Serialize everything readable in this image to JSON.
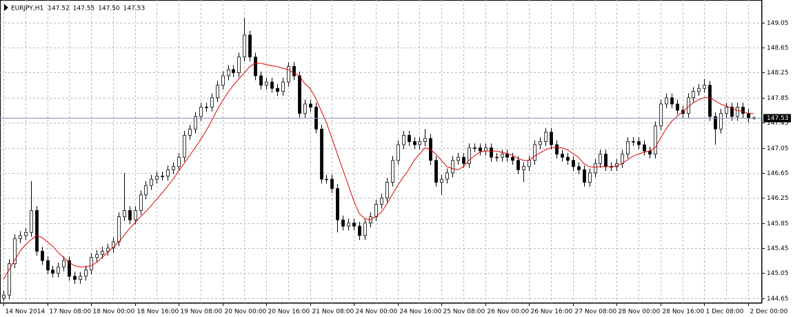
{
  "chart_data": {
    "type": "candlestick",
    "title": "EURJPY,H1",
    "quote_labels": [
      "147.52",
      "147.55",
      "147.50",
      "147.53"
    ],
    "categories": [
      "14 Nov 2014",
      null,
      null,
      null,
      null,
      null,
      null,
      null,
      "17 Nov 08:00",
      null,
      null,
      null,
      null,
      null,
      null,
      null,
      "18 Nov 00:00",
      null,
      null,
      null,
      null,
      null,
      null,
      null,
      "18 Nov 16:00",
      null,
      null,
      null,
      null,
      null,
      null,
      null,
      "19 Nov 08:00",
      null,
      null,
      null,
      null,
      null,
      null,
      null,
      "20 Nov 00:00",
      null,
      null,
      null,
      null,
      null,
      null,
      null,
      "20 Nov 16:00",
      null,
      null,
      null,
      null,
      null,
      null,
      null,
      "21 Nov 08:00",
      null,
      null,
      null,
      null,
      null,
      null,
      null,
      "24 Nov 00:00",
      null,
      null,
      null,
      null,
      null,
      null,
      null,
      "24 Nov 16:00",
      null,
      null,
      null,
      null,
      null,
      null,
      null,
      "25 Nov 08:00",
      null,
      null,
      null,
      null,
      null,
      null,
      null,
      "26 Nov 00:00",
      null,
      null,
      null,
      null,
      null,
      null,
      null,
      "26 Nov 16:00",
      null,
      null,
      null,
      null,
      null,
      null,
      null,
      "27 Nov 08:00",
      null,
      null,
      null,
      null,
      null,
      null,
      null,
      "28 Nov 00:00",
      null,
      null,
      null,
      null,
      null,
      null,
      null,
      "28 Nov 16:00",
      null,
      null,
      null,
      null,
      null,
      null,
      null,
      "1 Dec 08:00",
      null,
      null,
      null,
      null,
      null,
      null,
      null,
      "2 Dec 00:00",
      null
    ],
    "open": [
      144.65,
      144.7,
      145.2,
      145.6,
      145.65,
      145.7,
      146.05,
      145.4,
      145.25,
      145.1,
      145.05,
      145.15,
      145.25,
      145.0,
      144.95,
      145.0,
      145.1,
      145.3,
      145.35,
      145.4,
      145.45,
      145.55,
      145.95,
      146.05,
      145.9,
      146.05,
      146.3,
      146.45,
      146.55,
      146.6,
      146.6,
      146.7,
      146.75,
      146.9,
      147.25,
      147.35,
      147.55,
      147.7,
      147.7,
      147.85,
      148.05,
      148.2,
      148.3,
      148.25,
      148.5,
      148.85,
      148.5,
      148.2,
      148.05,
      148.1,
      148.0,
      147.95,
      148.1,
      148.35,
      148.2,
      147.6,
      147.75,
      147.7,
      147.35,
      146.55,
      146.55,
      146.4,
      145.9,
      145.8,
      145.85,
      145.8,
      145.65,
      145.85,
      145.95,
      146.15,
      146.25,
      146.5,
      146.85,
      147.1,
      147.25,
      147.15,
      147.1,
      147.15,
      147.2,
      146.85,
      146.5,
      146.55,
      146.65,
      146.85,
      146.9,
      146.8,
      147.05,
      147.05,
      147.0,
      147.05,
      146.9,
      146.9,
      146.95,
      146.9,
      146.85,
      146.7,
      146.75,
      146.85,
      147.1,
      147.15,
      147.3,
      147.1,
      146.95,
      146.9,
      146.85,
      146.75,
      146.7,
      146.5,
      146.65,
      146.8,
      146.95,
      146.75,
      146.75,
      146.8,
      146.95,
      147.15,
      147.15,
      147.1,
      147.0,
      146.95,
      147.4,
      147.75,
      147.85,
      147.75,
      147.65,
      147.6,
      147.85,
      147.95,
      148.0,
      148.05,
      147.55,
      147.35,
      147.6,
      147.7,
      147.55,
      147.7,
      147.6,
      147.52
    ],
    "high": [
      144.77,
      145.27,
      145.67,
      145.72,
      145.77,
      146.52,
      146.12,
      145.47,
      145.32,
      145.17,
      145.22,
      145.32,
      145.32,
      145.07,
      145.07,
      145.17,
      145.37,
      145.42,
      145.47,
      145.52,
      145.62,
      146.02,
      146.65,
      146.12,
      146.12,
      146.37,
      146.52,
      146.62,
      146.67,
      146.67,
      146.77,
      146.82,
      146.97,
      147.32,
      147.42,
      147.62,
      147.77,
      147.77,
      147.92,
      148.12,
      148.27,
      148.37,
      148.37,
      148.57,
      149.12,
      148.92,
      148.57,
      148.27,
      148.17,
      148.17,
      148.07,
      148.17,
      148.42,
      148.42,
      148.27,
      147.82,
      147.82,
      147.77,
      147.42,
      146.62,
      146.62,
      146.47,
      145.97,
      145.92,
      145.92,
      145.87,
      145.92,
      146.02,
      146.22,
      146.32,
      146.57,
      146.92,
      147.17,
      147.32,
      147.32,
      147.22,
      147.22,
      147.35,
      147.27,
      146.92,
      146.62,
      146.72,
      146.92,
      146.97,
      146.97,
      147.12,
      147.12,
      147.12,
      147.12,
      147.12,
      146.97,
      147.02,
      147.02,
      146.97,
      146.92,
      146.82,
      146.92,
      147.17,
      147.22,
      147.37,
      147.37,
      147.17,
      147.02,
      146.97,
      146.92,
      146.82,
      146.77,
      146.72,
      146.87,
      147.02,
      147.02,
      146.82,
      146.87,
      147.02,
      147.22,
      147.22,
      147.22,
      147.17,
      147.07,
      147.47,
      147.82,
      147.92,
      147.92,
      147.82,
      147.72,
      147.92,
      148.02,
      148.07,
      148.15,
      148.12,
      147.62,
      147.67,
      147.77,
      147.77,
      147.77,
      147.77,
      147.67,
      147.55
    ],
    "low": [
      144.6,
      144.63,
      145.13,
      145.53,
      145.58,
      145.63,
      145.33,
      145.18,
      145.03,
      144.98,
      144.98,
      145.08,
      144.93,
      144.88,
      144.88,
      144.93,
      145.03,
      145.23,
      145.28,
      145.33,
      145.38,
      145.48,
      145.88,
      145.83,
      145.83,
      145.98,
      146.23,
      146.38,
      146.48,
      146.53,
      146.53,
      146.63,
      146.68,
      146.83,
      147.18,
      147.28,
      147.48,
      147.63,
      147.63,
      147.78,
      147.98,
      148.13,
      148.18,
      148.18,
      148.43,
      148.43,
      148.13,
      147.98,
      147.98,
      147.93,
      147.88,
      147.88,
      148.03,
      148.13,
      147.53,
      147.53,
      147.63,
      147.28,
      146.48,
      146.48,
      146.33,
      145.7,
      145.73,
      145.73,
      145.73,
      145.58,
      145.58,
      145.78,
      145.88,
      146.08,
      146.18,
      146.43,
      146.78,
      147.03,
      147.08,
      147.03,
      147.03,
      147.08,
      146.78,
      146.43,
      146.3,
      146.48,
      146.58,
      146.78,
      146.73,
      146.73,
      146.98,
      146.93,
      146.93,
      146.83,
      146.83,
      146.83,
      146.83,
      146.78,
      146.63,
      146.5,
      146.68,
      146.78,
      147.03,
      147.08,
      147.03,
      146.88,
      146.83,
      146.78,
      146.68,
      146.63,
      146.43,
      146.43,
      146.58,
      146.73,
      146.68,
      146.68,
      146.68,
      146.73,
      146.88,
      147.08,
      147.03,
      146.93,
      146.88,
      146.88,
      147.33,
      147.68,
      147.68,
      147.58,
      147.53,
      147.53,
      147.78,
      147.88,
      147.93,
      147.48,
      147.1,
      147.28,
      147.53,
      147.48,
      147.48,
      147.53,
      147.45,
      147.5
    ],
    "close": [
      144.7,
      145.2,
      145.6,
      145.65,
      145.7,
      146.05,
      145.4,
      145.25,
      145.1,
      145.05,
      145.15,
      145.25,
      145.0,
      144.95,
      145.0,
      145.1,
      145.3,
      145.35,
      145.4,
      145.45,
      145.55,
      145.95,
      146.05,
      145.9,
      146.05,
      146.3,
      146.45,
      146.55,
      146.6,
      146.6,
      146.7,
      146.75,
      146.9,
      147.25,
      147.35,
      147.55,
      147.7,
      147.7,
      147.85,
      148.05,
      148.2,
      148.3,
      148.25,
      148.5,
      148.85,
      148.5,
      148.2,
      148.05,
      148.1,
      148.0,
      147.95,
      148.1,
      148.35,
      148.2,
      147.6,
      147.75,
      147.7,
      147.35,
      146.55,
      146.55,
      146.4,
      145.9,
      145.8,
      145.85,
      145.8,
      145.65,
      145.85,
      145.95,
      146.15,
      146.25,
      146.5,
      146.85,
      147.1,
      147.25,
      147.15,
      147.1,
      147.15,
      147.2,
      146.85,
      146.5,
      146.55,
      146.65,
      146.85,
      146.9,
      146.8,
      147.05,
      147.05,
      147.0,
      147.05,
      146.9,
      146.9,
      146.95,
      146.9,
      146.85,
      146.7,
      146.75,
      146.85,
      147.1,
      147.15,
      147.3,
      147.1,
      146.95,
      146.9,
      146.85,
      146.75,
      146.7,
      146.5,
      146.65,
      146.8,
      146.95,
      146.75,
      146.75,
      146.8,
      146.95,
      147.15,
      147.15,
      147.1,
      147.0,
      146.95,
      147.4,
      147.75,
      147.85,
      147.75,
      147.65,
      147.6,
      147.85,
      147.95,
      148.0,
      148.05,
      147.55,
      147.35,
      147.6,
      147.7,
      147.55,
      147.7,
      147.6,
      147.52,
      147.53
    ],
    "ma": {
      "color": "#e00000",
      "values": [
        144.95,
        145.1,
        145.25,
        145.4,
        145.5,
        145.58,
        145.65,
        145.62,
        145.55,
        145.48,
        145.38,
        145.3,
        145.22,
        145.17,
        145.15,
        145.15,
        145.17,
        145.22,
        145.3,
        145.38,
        145.46,
        145.54,
        145.65,
        145.76,
        145.85,
        145.95,
        146.03,
        146.13,
        146.23,
        146.33,
        146.44,
        146.55,
        146.68,
        146.8,
        146.93,
        147.05,
        147.18,
        147.32,
        147.48,
        147.65,
        147.8,
        147.93,
        148.05,
        148.15,
        148.25,
        148.35,
        148.4,
        148.4,
        148.38,
        148.36,
        148.35,
        148.32,
        148.3,
        148.25,
        148.2,
        148.08,
        148.0,
        147.85,
        147.65,
        147.45,
        147.2,
        146.95,
        146.7,
        146.45,
        146.2,
        146.0,
        145.92,
        145.9,
        145.95,
        146.02,
        146.15,
        146.3,
        146.45,
        146.58,
        146.7,
        146.85,
        146.95,
        147.05,
        147.02,
        146.95,
        146.85,
        146.75,
        146.72,
        146.7,
        146.75,
        146.85,
        146.92,
        146.98,
        147.0,
        147.0,
        147.0,
        146.98,
        146.96,
        146.93,
        146.88,
        146.85,
        146.85,
        146.92,
        146.97,
        147.02,
        147.05,
        147.06,
        147.05,
        147.02,
        146.96,
        146.9,
        146.8,
        146.75,
        146.74,
        146.75,
        146.75,
        146.75,
        146.76,
        146.8,
        146.86,
        146.92,
        146.95,
        146.98,
        147.0,
        147.05,
        147.2,
        147.35,
        147.47,
        147.55,
        147.62,
        147.7,
        147.77,
        147.82,
        147.85,
        147.85,
        147.8,
        147.75,
        147.72,
        147.68,
        147.65,
        147.63,
        147.6,
        147.6
      ]
    },
    "up_color": "#ffffff",
    "down_color": "#000000",
    "wick_color": "#000000",
    "ylim": [
      144.57,
      149.41
    ],
    "yticks": [
      149.05,
      148.65,
      148.25,
      147.85,
      147.45,
      147.05,
      146.65,
      146.25,
      145.85,
      145.45,
      145.05,
      144.65
    ],
    "grid": true
  }
}
